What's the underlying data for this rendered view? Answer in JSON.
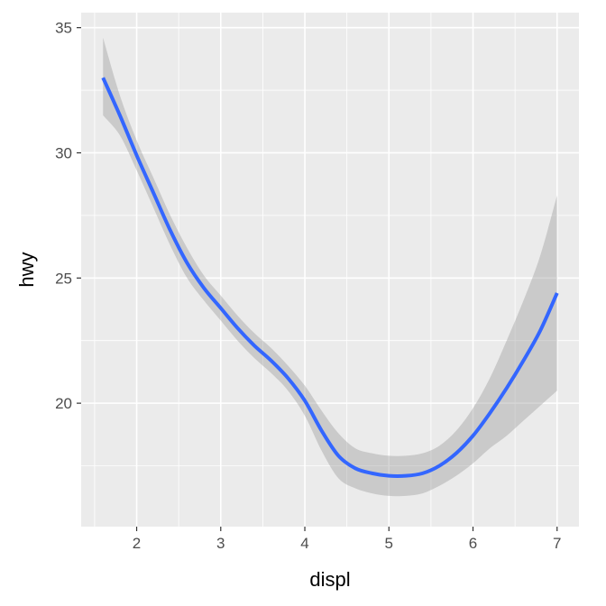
{
  "chart_data": {
    "type": "line",
    "title": "",
    "xlabel": "displ",
    "ylabel": "hwy",
    "xlim": [
      1.34,
      7.26
    ],
    "ylim": [
      15.07,
      35.6
    ],
    "x_ticks": [
      2,
      3,
      4,
      5,
      6,
      7
    ],
    "y_ticks": [
      20,
      25,
      30,
      35
    ],
    "x_tick_labels": [
      "2",
      "3",
      "4",
      "5",
      "6",
      "7"
    ],
    "y_tick_labels": [
      "20",
      "25",
      "30",
      "35"
    ],
    "grid": true,
    "legend": "none",
    "colors": {
      "panel_background": "#ebebeb",
      "grid": "#ffffff",
      "line": "#3366ff",
      "ribbon": "#999999"
    },
    "series": [
      {
        "type": "smooth-line-with-confidence-band",
        "x": [
          1.6,
          1.8,
          2.0,
          2.2,
          2.4,
          2.6,
          2.8,
          3.0,
          3.2,
          3.4,
          3.6,
          3.8,
          4.0,
          4.2,
          4.4,
          4.6,
          4.8,
          5.0,
          5.2,
          5.4,
          5.6,
          5.8,
          6.0,
          6.2,
          6.4,
          6.6,
          6.8,
          7.0
        ],
        "y": [
          33.0,
          31.5,
          29.9,
          28.4,
          26.9,
          25.6,
          24.6,
          23.8,
          23.0,
          22.3,
          21.7,
          21.0,
          20.1,
          18.9,
          17.9,
          17.4,
          17.2,
          17.1,
          17.1,
          17.2,
          17.5,
          18.0,
          18.7,
          19.6,
          20.6,
          21.7,
          22.9,
          24.4
        ],
        "ymin": [
          31.5,
          30.7,
          29.3,
          27.8,
          26.3,
          25.0,
          24.1,
          23.3,
          22.5,
          21.8,
          21.2,
          20.5,
          19.5,
          18.1,
          17.0,
          16.6,
          16.4,
          16.3,
          16.3,
          16.4,
          16.7,
          17.1,
          17.6,
          18.2,
          18.7,
          19.3,
          19.9,
          20.5
        ],
        "ymax": [
          34.6,
          32.3,
          30.5,
          29.0,
          27.5,
          26.2,
          25.1,
          24.3,
          23.5,
          22.8,
          22.2,
          21.5,
          20.7,
          19.7,
          18.8,
          18.2,
          18.0,
          17.9,
          17.9,
          18.0,
          18.3,
          18.9,
          19.8,
          21.0,
          22.5,
          24.1,
          25.9,
          28.3
        ]
      }
    ]
  }
}
